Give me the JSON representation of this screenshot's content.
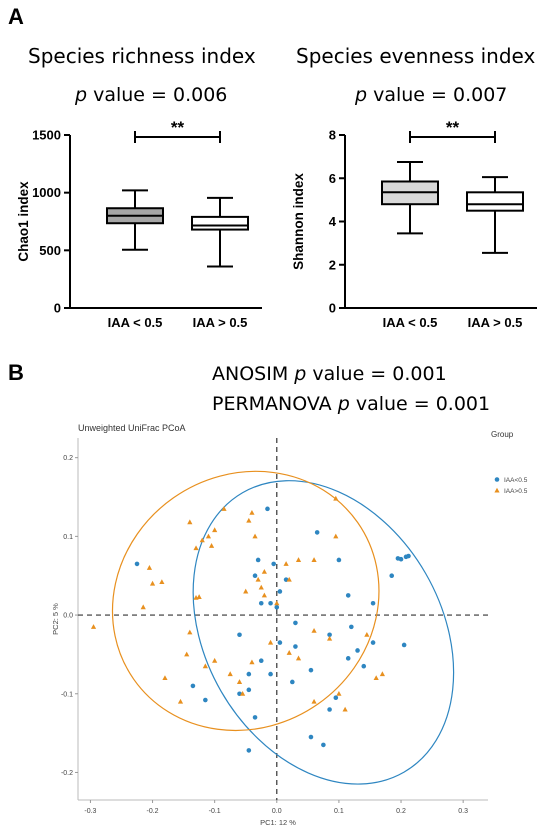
{
  "panel_a_label": "A",
  "panel_b_label": "B",
  "richness": {
    "title": "Species richness index",
    "p_italic": "p",
    "p_rest": " value = 0.006"
  },
  "evenness": {
    "title": "Species evenness index",
    "p_italic": "p",
    "p_rest": " value = 0.007"
  },
  "anosim": {
    "pre": "ANOSIM ",
    "p": "p",
    "post": " value =  0.001"
  },
  "permanova": {
    "pre": "PERMANOVA ",
    "p": "p",
    "post": " value = 0.001"
  },
  "chart_data": [
    {
      "type": "box",
      "ylabel": "Chao1 index",
      "ylim": [
        0,
        1500
      ],
      "yticks": [
        0,
        500,
        1000,
        1500
      ],
      "categories": [
        "IAA < 0.5",
        "IAA > 0.5"
      ],
      "boxes": [
        {
          "min": 505,
          "q1": 735,
          "median": 800,
          "q3": 865,
          "max": 1020,
          "fill": "#a6a6a6"
        },
        {
          "min": 360,
          "q1": 680,
          "median": 715,
          "q3": 790,
          "max": 955,
          "fill": "#ffffff"
        }
      ],
      "significance": "**"
    },
    {
      "type": "box",
      "ylabel": "Shannon index",
      "ylim": [
        0,
        8
      ],
      "yticks": [
        0,
        2,
        4,
        6,
        8
      ],
      "categories": [
        "IAA < 0.5",
        "IAA > 0.5"
      ],
      "boxes": [
        {
          "min": 3.45,
          "q1": 4.8,
          "median": 5.35,
          "q3": 5.85,
          "max": 6.75,
          "fill": "#d9d9d9"
        },
        {
          "min": 2.55,
          "q1": 4.5,
          "median": 4.8,
          "q3": 5.35,
          "max": 6.05,
          "fill": "#ffffff"
        }
      ],
      "significance": "**"
    },
    {
      "type": "scatter",
      "title": "Unweighted UniFrac PCoA",
      "xlabel": "PC1: 12 %",
      "ylabel": "PC2: 5 %",
      "legend_title": "Group",
      "legend_position": "top-right",
      "xlim": [
        -0.32,
        0.34
      ],
      "ylim": [
        -0.235,
        0.225
      ],
      "xticks": [
        -0.3,
        -0.2,
        -0.1,
        0.0,
        0.1,
        0.2,
        0.3
      ],
      "yticks": [
        -0.2,
        -0.1,
        0.0,
        0.1,
        0.2
      ],
      "tick_labels_x": [
        "-0.3",
        "-0.2",
        "-0.1",
        "0.0",
        "0.1",
        "0.2",
        "0.3"
      ],
      "tick_labels_y": [
        "-0.2",
        "-0.1",
        "0.0",
        "0.1",
        "0.2"
      ],
      "series": [
        {
          "name": "IAA<0.5",
          "color": "#2e86c1",
          "marker": "circle",
          "ellipse": {
            "cx": 0.075,
            "cy": -0.022,
            "rx": 0.19,
            "ry": 0.205,
            "angle": -30
          },
          "points": [
            [
              -0.015,
              0.135
            ],
            [
              -0.225,
              0.065
            ],
            [
              0.065,
              0.105
            ],
            [
              -0.03,
              0.07
            ],
            [
              0.1,
              0.07
            ],
            [
              -0.005,
              0.065
            ],
            [
              0.195,
              0.072
            ],
            [
              0.2,
              0.071
            ],
            [
              0.212,
              0.075
            ],
            [
              0.208,
              0.074
            ],
            [
              0.185,
              0.05
            ],
            [
              0.015,
              0.045
            ],
            [
              -0.035,
              0.05
            ],
            [
              0.005,
              0.03
            ],
            [
              -0.025,
              0.015
            ],
            [
              0.115,
              0.025
            ],
            [
              0.155,
              0.015
            ],
            [
              -0.01,
              0.015
            ],
            [
              0.0,
              0.01
            ],
            [
              0.03,
              -0.01
            ],
            [
              0.12,
              -0.015
            ],
            [
              -0.06,
              -0.025
            ],
            [
              0.085,
              -0.025
            ],
            [
              0.005,
              -0.035
            ],
            [
              0.03,
              -0.04
            ],
            [
              0.155,
              -0.035
            ],
            [
              0.205,
              -0.038
            ],
            [
              0.13,
              -0.045
            ],
            [
              -0.025,
              -0.058
            ],
            [
              0.115,
              -0.055
            ],
            [
              0.14,
              -0.065
            ],
            [
              -0.045,
              -0.075
            ],
            [
              0.025,
              -0.085
            ],
            [
              -0.01,
              -0.075
            ],
            [
              0.055,
              -0.07
            ],
            [
              -0.135,
              -0.09
            ],
            [
              -0.045,
              -0.095
            ],
            [
              -0.06,
              -0.1
            ],
            [
              0.095,
              -0.105
            ],
            [
              -0.115,
              -0.108
            ],
            [
              0.085,
              -0.12
            ],
            [
              -0.035,
              -0.13
            ],
            [
              0.055,
              -0.155
            ],
            [
              0.075,
              -0.165
            ],
            [
              -0.045,
              -0.172
            ]
          ]
        },
        {
          "name": "IAA>0.5",
          "color": "#e8901f",
          "marker": "triangle",
          "ellipse": {
            "cx": -0.05,
            "cy": 0.018,
            "rx": 0.22,
            "ry": 0.16,
            "angle": -35
          },
          "points": [
            [
              -0.04,
              0.13
            ],
            [
              -0.085,
              0.135
            ],
            [
              -0.045,
              0.12
            ],
            [
              -0.14,
              0.118
            ],
            [
              -0.11,
              0.1
            ],
            [
              -0.035,
              0.1
            ],
            [
              0.095,
              0.1
            ],
            [
              -0.1,
              0.108
            ],
            [
              -0.12,
              0.095
            ],
            [
              -0.13,
              0.085
            ],
            [
              -0.105,
              0.088
            ],
            [
              0.095,
              0.148
            ],
            [
              -0.205,
              0.06
            ],
            [
              -0.2,
              0.04
            ],
            [
              -0.185,
              0.042
            ],
            [
              -0.13,
              0.022
            ],
            [
              -0.125,
              0.023
            ],
            [
              -0.02,
              0.055
            ],
            [
              0.015,
              0.065
            ],
            [
              0.035,
              0.07
            ],
            [
              0.06,
              0.07
            ],
            [
              0.02,
              0.045
            ],
            [
              -0.03,
              0.045
            ],
            [
              -0.025,
              0.035
            ],
            [
              -0.02,
              0.025
            ],
            [
              -0.05,
              0.03
            ],
            [
              0.0,
              0.015
            ],
            [
              -0.215,
              0.01
            ],
            [
              -0.295,
              -0.015
            ],
            [
              -0.14,
              -0.022
            ],
            [
              0.06,
              -0.02
            ],
            [
              0.085,
              -0.03
            ],
            [
              0.145,
              -0.025
            ],
            [
              -0.01,
              -0.035
            ],
            [
              0.02,
              -0.048
            ],
            [
              0.035,
              -0.055
            ],
            [
              -0.145,
              -0.05
            ],
            [
              -0.1,
              -0.058
            ],
            [
              -0.04,
              -0.06
            ],
            [
              -0.115,
              -0.065
            ],
            [
              -0.18,
              -0.08
            ],
            [
              -0.075,
              -0.075
            ],
            [
              0.17,
              -0.075
            ],
            [
              0.16,
              -0.08
            ],
            [
              0.1,
              -0.1
            ],
            [
              -0.06,
              -0.085
            ],
            [
              -0.055,
              -0.1
            ],
            [
              -0.155,
              -0.11
            ],
            [
              0.11,
              -0.12
            ],
            [
              0.06,
              -0.11
            ]
          ]
        }
      ]
    }
  ]
}
